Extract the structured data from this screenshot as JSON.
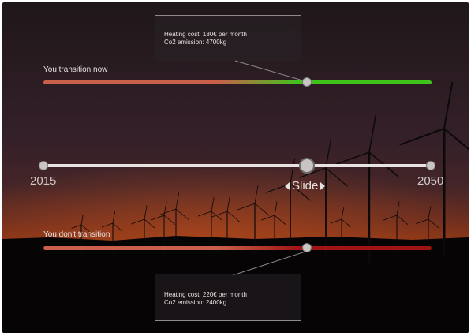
{
  "top_tooltip": {
    "line1": "Heating cost: 180€ per month",
    "line2": "Co2 emission: 4700kg"
  },
  "top_label": "You transition now",
  "slider": {
    "start_year": "2015",
    "end_year": "2050",
    "handle_label": "Slide",
    "position": 0.7
  },
  "bottom_label": "You don't transition",
  "bottom_tooltip": {
    "line1": "Heating cost: 220€ per month",
    "line2": "Co2 emission: 2400kg"
  },
  "colors": {
    "transition_start": "#c8604a",
    "transition_end": "#3fc41c",
    "no_transition_start": "#c8604a",
    "no_transition_end": "#a01414",
    "track": "#e6e3e1"
  },
  "icons": [
    "wind-turbine-icon",
    "chevron-left-icon",
    "chevron-right-icon"
  ]
}
